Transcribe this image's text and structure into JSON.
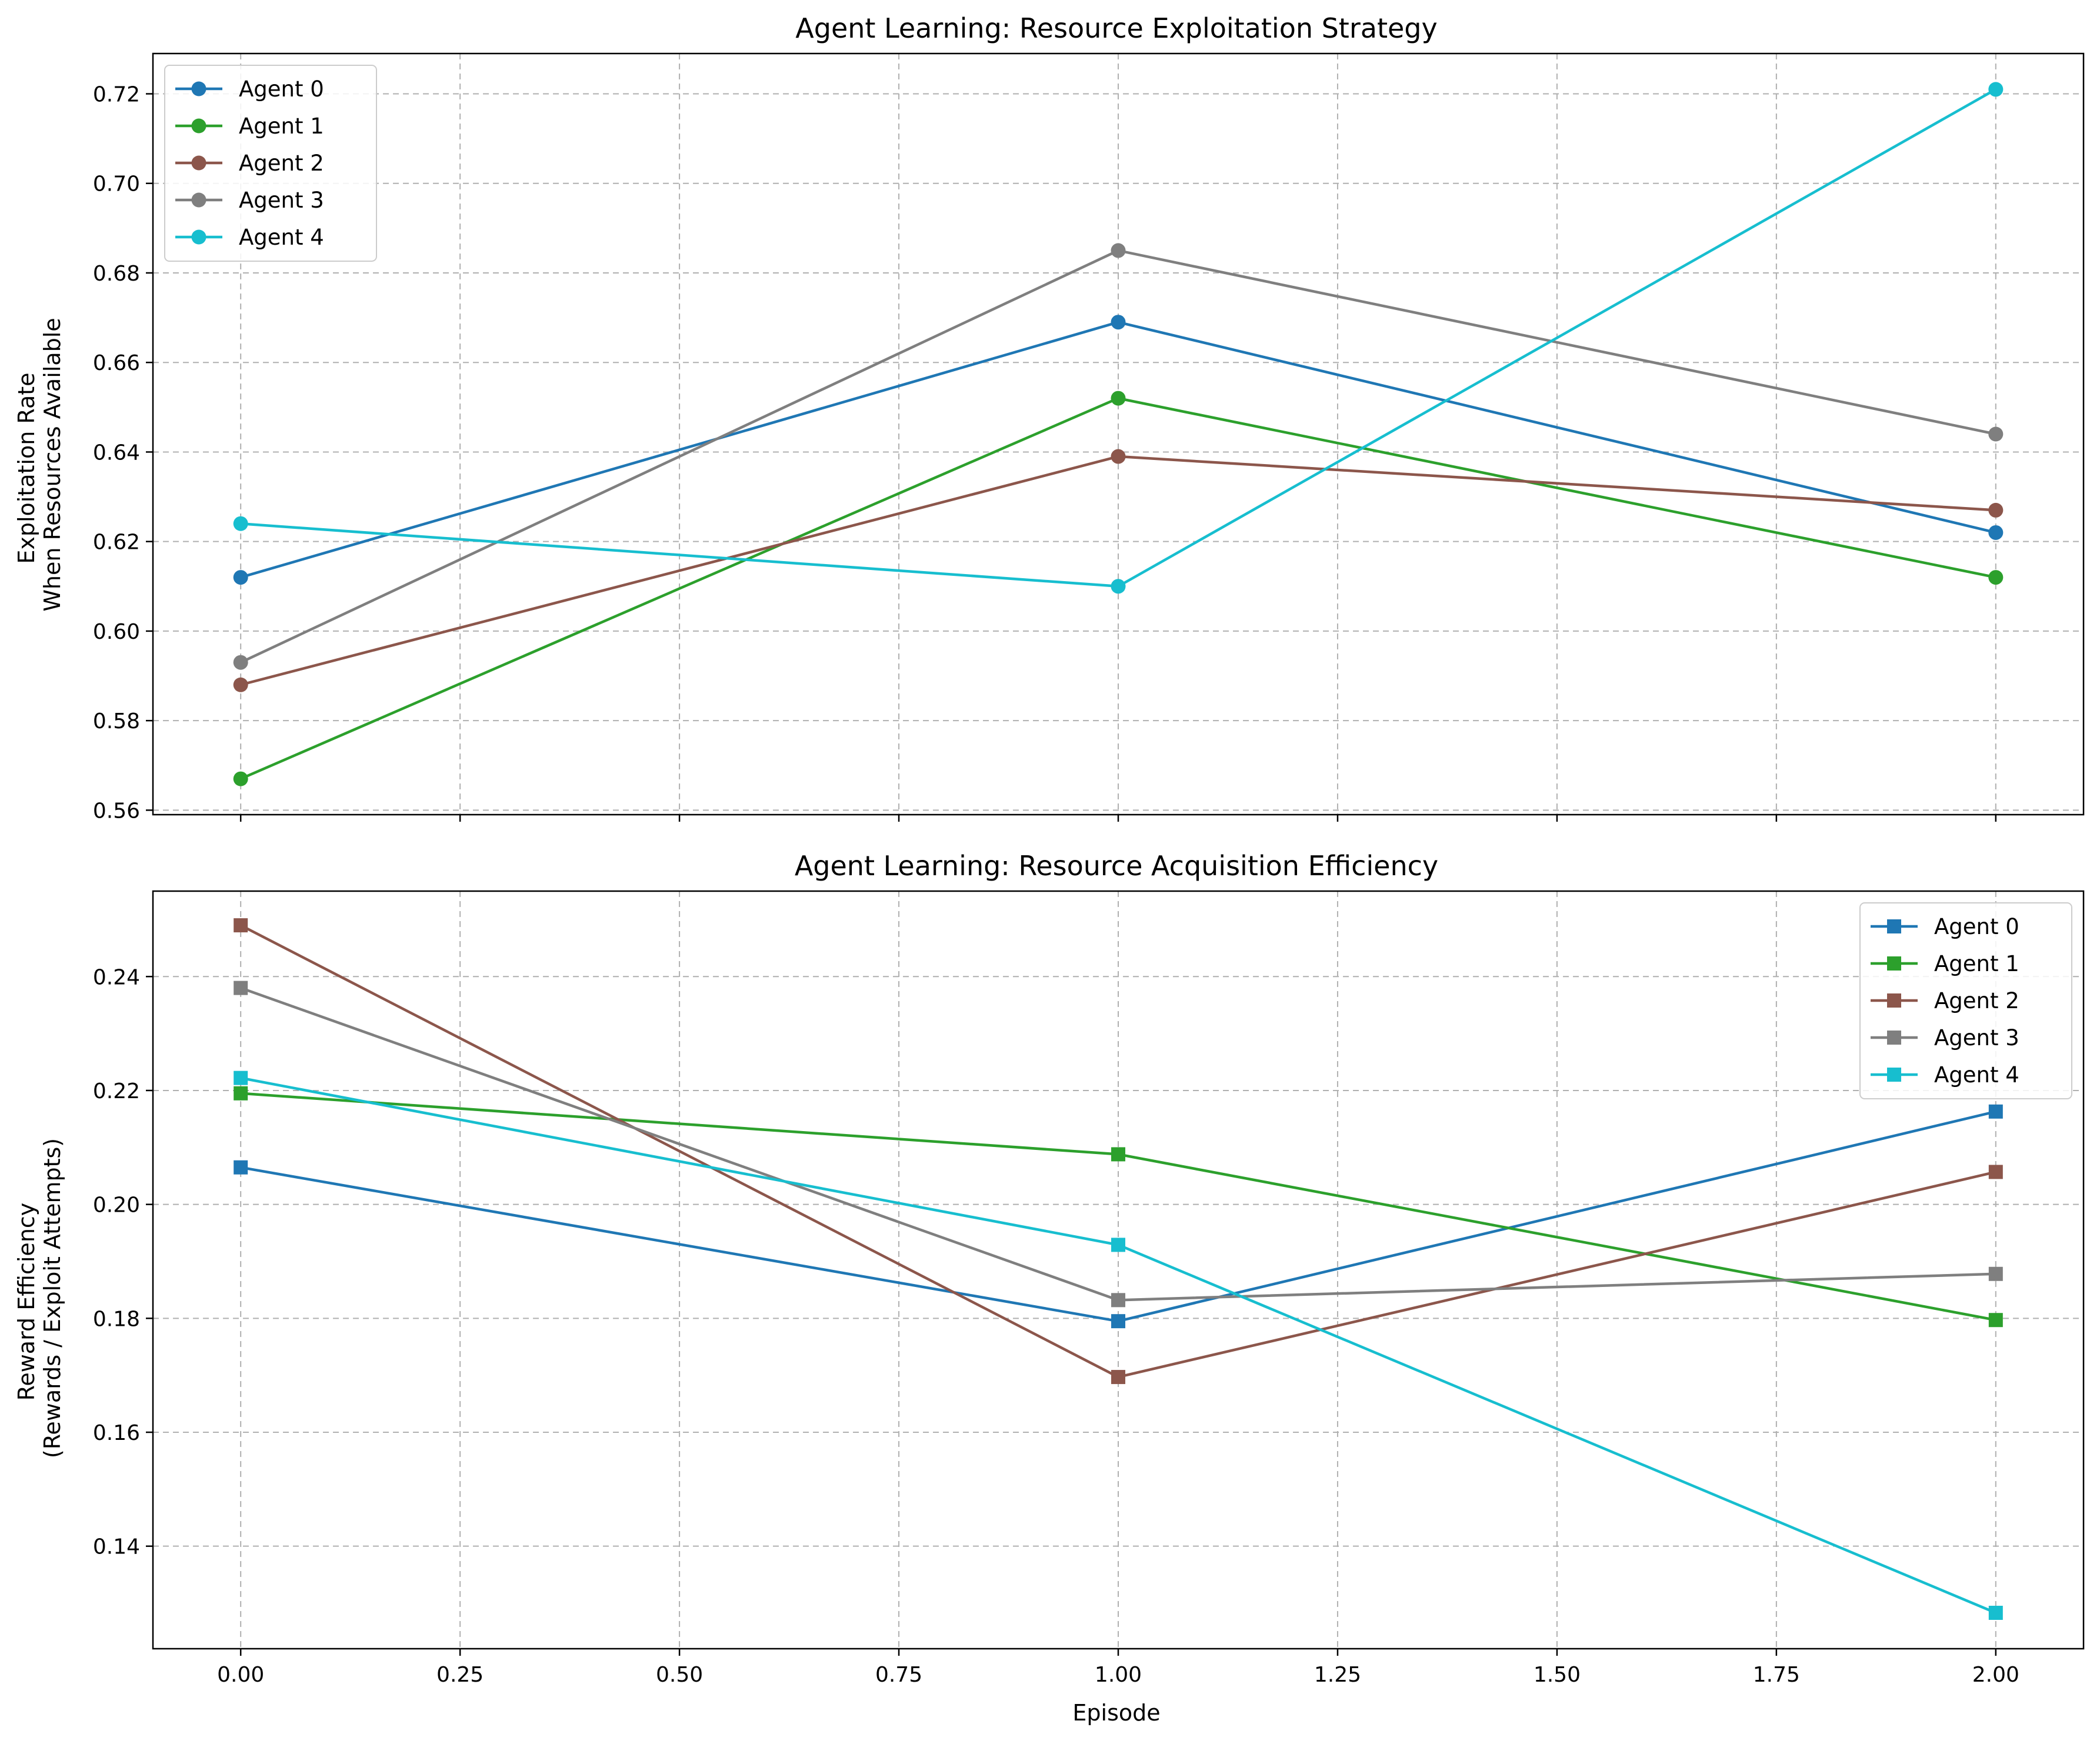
{
  "figure": {
    "xlabel": "Episode"
  },
  "colors": {
    "Agent 0": "#1f77b4",
    "Agent 1": "#2ca02c",
    "Agent 2": "#8c564b",
    "Agent 3": "#7f7f7f",
    "Agent 4": "#17becf"
  },
  "chart_data": [
    {
      "type": "line",
      "title": "Agent Learning: Resource Exploitation Strategy",
      "xlabel": "",
      "ylabel": [
        "Exploitation Rate",
        "When Resources Available"
      ],
      "marker": "circle",
      "legend_placement": "top-left",
      "grid": true,
      "grid_style": "dashed",
      "xlim": [
        -0.1,
        2.1
      ],
      "ylim": [
        0.559,
        0.729
      ],
      "xticks": [
        0.0,
        0.25,
        0.5,
        0.75,
        1.0,
        1.25,
        1.5,
        1.75,
        2.0
      ],
      "xtick_labels": [],
      "yticks": [
        0.56,
        0.58,
        0.6,
        0.62,
        0.64,
        0.66,
        0.68,
        0.7,
        0.72
      ],
      "ytick_labels": [
        "0.56",
        "0.58",
        "0.60",
        "0.62",
        "0.64",
        "0.66",
        "0.68",
        "0.70",
        "0.72"
      ],
      "x": [
        0,
        1,
        2
      ],
      "series": [
        {
          "name": "Agent 0",
          "values": [
            0.612,
            0.669,
            0.622
          ]
        },
        {
          "name": "Agent 1",
          "values": [
            0.567,
            0.652,
            0.612
          ]
        },
        {
          "name": "Agent 2",
          "values": [
            0.588,
            0.639,
            0.627
          ]
        },
        {
          "name": "Agent 3",
          "values": [
            0.593,
            0.685,
            0.644
          ]
        },
        {
          "name": "Agent 4",
          "values": [
            0.624,
            0.61,
            0.721
          ]
        }
      ]
    },
    {
      "type": "line",
      "title": "Agent Learning: Resource Acquisition Efficiency",
      "xlabel": "Episode",
      "ylabel": [
        "Reward Efficiency",
        "(Rewards / Exploit Attempts)"
      ],
      "marker": "square",
      "legend_placement": "top-right",
      "grid": true,
      "grid_style": "dashed",
      "xlim": [
        -0.1,
        2.1
      ],
      "ylim": [
        0.122,
        0.255
      ],
      "xticks": [
        0.0,
        0.25,
        0.5,
        0.75,
        1.0,
        1.25,
        1.5,
        1.75,
        2.0
      ],
      "xtick_labels": [
        "0.00",
        "0.25",
        "0.50",
        "0.75",
        "1.00",
        "1.25",
        "1.50",
        "1.75",
        "2.00"
      ],
      "yticks": [
        0.14,
        0.16,
        0.18,
        0.2,
        0.22,
        0.24
      ],
      "ytick_labels": [
        "0.14",
        "0.16",
        "0.18",
        "0.20",
        "0.22",
        "0.24"
      ],
      "x": [
        0,
        1,
        2
      ],
      "series": [
        {
          "name": "Agent 0",
          "values": [
            0.2065,
            0.1795,
            0.2163
          ]
        },
        {
          "name": "Agent 1",
          "values": [
            0.2195,
            0.2088,
            0.1797
          ]
        },
        {
          "name": "Agent 2",
          "values": [
            0.249,
            0.1697,
            0.2057
          ]
        },
        {
          "name": "Agent 3",
          "values": [
            0.238,
            0.1832,
            0.1878
          ]
        },
        {
          "name": "Agent 4",
          "values": [
            0.2222,
            0.1929,
            0.1283
          ]
        }
      ]
    }
  ]
}
